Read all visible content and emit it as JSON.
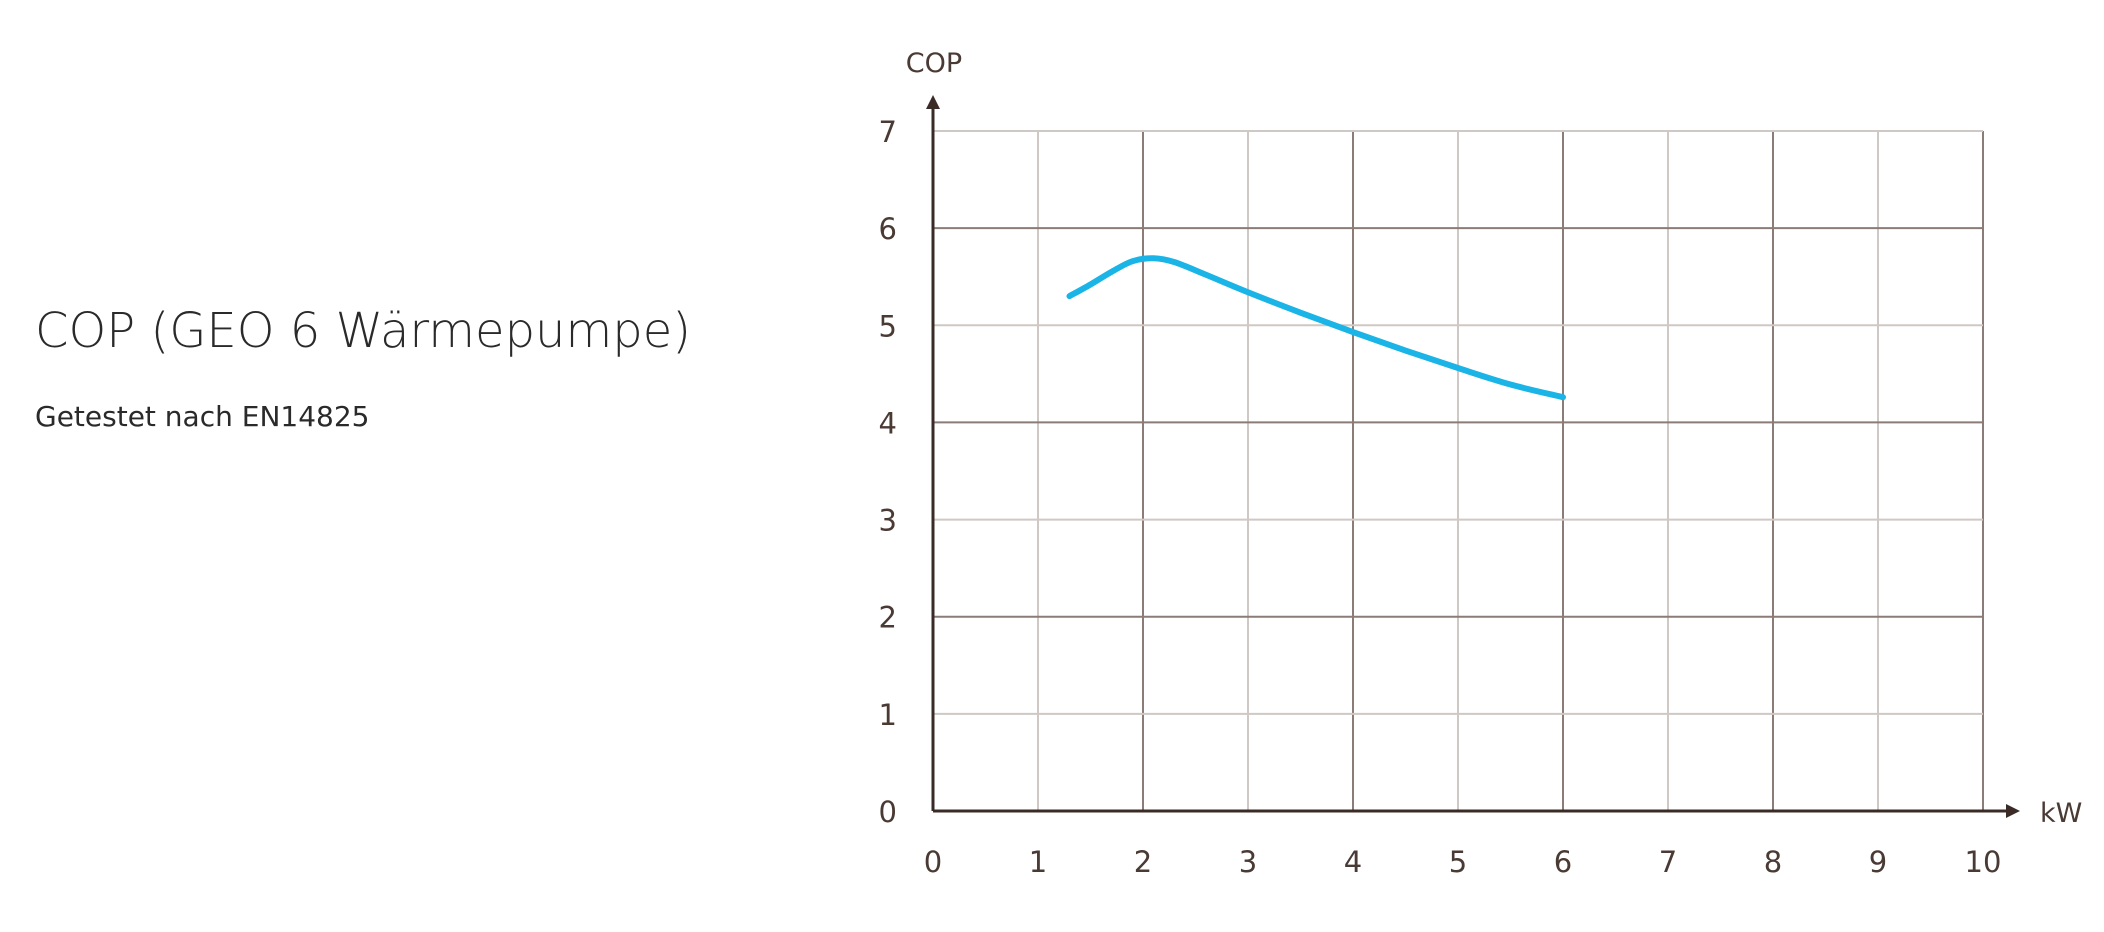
{
  "header": {
    "title": "COP (GEO 6 Wärmepumpe)",
    "subtitle": "Getestet nach EN14825"
  },
  "chart_data": {
    "type": "line",
    "xlabel": "kW",
    "ylabel": "COP",
    "xlim": [
      0,
      10
    ],
    "ylim": [
      0,
      7
    ],
    "x_ticks": [
      "0",
      "1",
      "2",
      "3",
      "4",
      "5",
      "6",
      "7",
      "8",
      "9",
      "10"
    ],
    "y_ticks": [
      "0",
      "1",
      "2",
      "3",
      "4",
      "5",
      "6",
      "7"
    ],
    "grid": true,
    "series": [
      {
        "color": "#1ab4e6",
        "points": [
          {
            "x": 1.3,
            "y": 5.3
          },
          {
            "x": 1.5,
            "y": 5.42
          },
          {
            "x": 1.7,
            "y": 5.55
          },
          {
            "x": 1.9,
            "y": 5.66
          },
          {
            "x": 2.1,
            "y": 5.69
          },
          {
            "x": 2.3,
            "y": 5.65
          },
          {
            "x": 2.6,
            "y": 5.52
          },
          {
            "x": 3.0,
            "y": 5.34
          },
          {
            "x": 3.5,
            "y": 5.13
          },
          {
            "x": 4.0,
            "y": 4.93
          },
          {
            "x": 4.5,
            "y": 4.74
          },
          {
            "x": 5.0,
            "y": 4.56
          },
          {
            "x": 5.5,
            "y": 4.39
          },
          {
            "x": 6.0,
            "y": 4.26
          }
        ]
      }
    ]
  }
}
